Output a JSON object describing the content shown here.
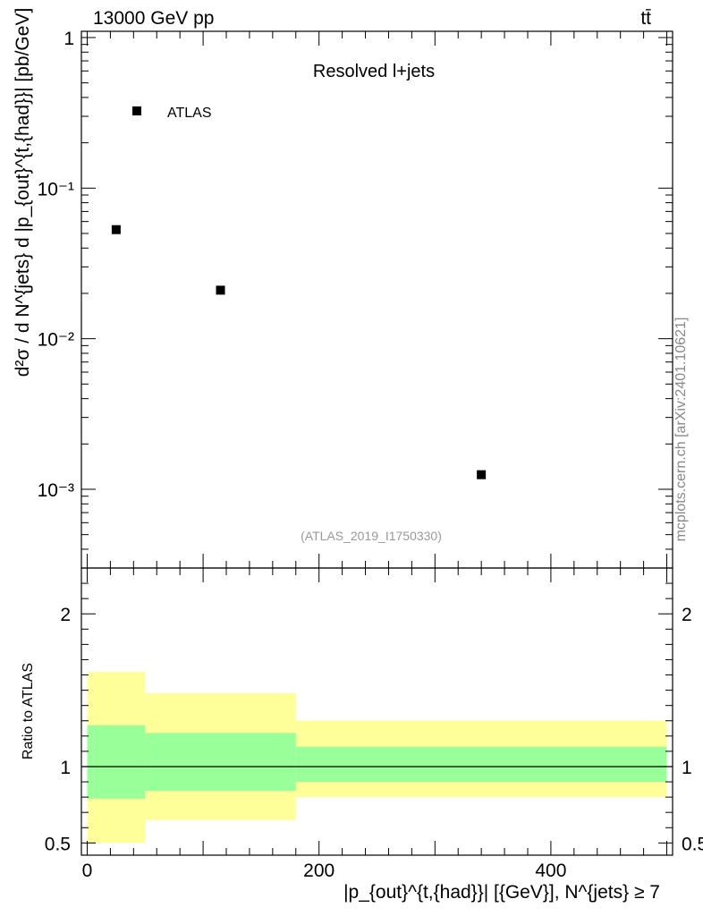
{
  "header": {
    "energy_label": "13000 GeV pp",
    "process_label": "tt̄"
  },
  "watermark": {
    "side_label": "mcplots.cern.ch [arXiv:2401.10621]",
    "analysis_id": "(ATLAS_2019_I1750330)"
  },
  "chart_data": [
    {
      "type": "scatter",
      "panel": "main",
      "title": "Resolved l+jets",
      "ylabel": "d²σ / d N^{jets} d |p_{out}^{t,{had}}| [pb/GeV]",
      "yscale": "log",
      "ylim": [
        0.0003,
        1.1
      ],
      "xlim": [
        -5,
        505
      ],
      "y_tick_labels": [
        "1",
        "10⁻¹",
        "10⁻²",
        "10⁻³"
      ],
      "series": [
        {
          "name": "ATLAS",
          "marker": "square",
          "color": "#000000",
          "x": [
            25,
            115,
            340
          ],
          "y": [
            0.053,
            0.021,
            0.00125
          ]
        }
      ],
      "legend": "top-left"
    },
    {
      "type": "area",
      "panel": "ratio",
      "ylabel": "Ratio to ATLAS",
      "xlabel": "|p_{out}^{t,{had}}| [{GeV}], N^{jets} ≥ 7",
      "xlim": [
        -5,
        505
      ],
      "ylim": [
        0.42,
        2.3
      ],
      "x_tick_labels": [
        "0",
        "200",
        "400"
      ],
      "y_tick_labels": [
        "0.5",
        "1",
        "2"
      ],
      "reference_line": 1,
      "bins": [
        [
          0,
          50
        ],
        [
          50,
          180
        ],
        [
          180,
          500
        ]
      ],
      "bands": [
        {
          "name": "outer",
          "color": "#ffff99",
          "low": [
            0.5,
            0.65,
            0.8
          ],
          "high": [
            1.62,
            1.48,
            1.3
          ]
        },
        {
          "name": "inner",
          "color": "#99ff99",
          "low": [
            0.79,
            0.84,
            0.9
          ],
          "high": [
            1.27,
            1.22,
            1.13
          ]
        }
      ]
    }
  ]
}
